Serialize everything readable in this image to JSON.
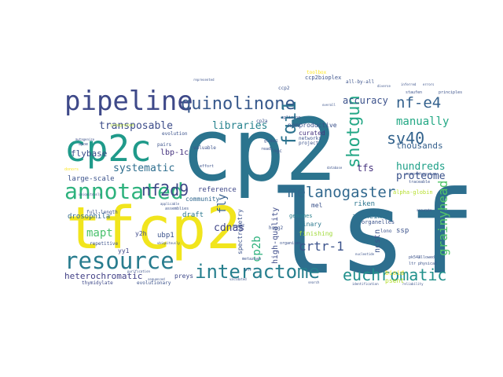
{
  "word_cloud": {
    "words": [
      {
        "text": "lsf",
        "color": "#2d6f8e"
      },
      {
        "text": "cp2",
        "color": "#2b748e"
      },
      {
        "text": "tfcp2",
        "color": "#f1e51d"
      },
      {
        "text": "pipeline",
        "color": "#3e4989"
      },
      {
        "text": "cp2c",
        "color": "#1f9a8a"
      },
      {
        "text": "annotated",
        "color": "#2db27d"
      },
      {
        "text": "resource",
        "color": "#287c8e"
      },
      {
        "text": "interactome",
        "color": "#277f8e"
      },
      {
        "text": "euchromatic",
        "color": "#21918c"
      },
      {
        "text": "quinolinone",
        "color": "#38598c"
      },
      {
        "text": "fqi1",
        "color": "#2c738e"
      },
      {
        "text": "shotgun",
        "color": "#22a785"
      },
      {
        "text": "melanogaster",
        "color": "#31688e"
      },
      {
        "text": "nf2d9",
        "color": "#3f4788"
      },
      {
        "text": "sv40",
        "color": "#33638d"
      },
      {
        "text": "nf-e4",
        "color": "#34618d"
      },
      {
        "text": "cp2b",
        "color": "#2db27d"
      },
      {
        "text": "grainyhead",
        "color": "#52c569"
      },
      {
        "text": "crtr-1",
        "color": "#3b528b"
      },
      {
        "text": "mapt",
        "color": "#4ac16d"
      },
      {
        "text": "cdnas",
        "color": "#404688"
      },
      {
        "text": "fly",
        "color": "#355f8d"
      },
      {
        "text": "transposable",
        "color": "#3d4d8a"
      },
      {
        "text": "libraries",
        "color": "#26828e"
      },
      {
        "text": "systematic",
        "color": "#2e6e8e"
      },
      {
        "text": "accuracy",
        "color": "#3b518b"
      },
      {
        "text": "manually",
        "color": "#22a884"
      },
      {
        "text": "hundreds",
        "color": "#1fa088"
      },
      {
        "text": "proteome",
        "color": "#3b528b"
      },
      {
        "text": "thousands",
        "color": "#35608d"
      },
      {
        "text": "tfs",
        "color": "#46327e"
      },
      {
        "text": "flybase",
        "color": "#3c4f8a"
      },
      {
        "text": "heterochromatic",
        "color": "#424086"
      },
      {
        "text": "draft",
        "color": "#2a778e"
      },
      {
        "text": "lbp-1c",
        "color": "#46337f"
      },
      {
        "text": "drosophila",
        "color": "#31688e"
      },
      {
        "text": "large-scale",
        "color": "#3b528b"
      },
      {
        "text": "reference",
        "color": "#3f4889"
      },
      {
        "text": "alzheimer",
        "color": "#2c728e"
      },
      {
        "text": "high-quality",
        "color": "#3e4c8a"
      },
      {
        "text": "nonproductive",
        "color": "#3b528b"
      },
      {
        "text": "curated",
        "color": "#46327e"
      },
      {
        "text": "riken",
        "color": "#2b758e"
      },
      {
        "text": "finishing",
        "color": "#a0da39"
      },
      {
        "text": "binary",
        "color": "#2a778e"
      },
      {
        "text": "genomes",
        "color": "#277f8e"
      },
      {
        "text": "mel",
        "color": "#3b528b"
      },
      {
        "text": "community",
        "color": "#31688e"
      },
      {
        "text": "ubp1",
        "color": "#3b528b"
      },
      {
        "text": "y2h",
        "color": "#3e4989"
      },
      {
        "text": "yy1",
        "color": "#3f4788"
      },
      {
        "text": "preys",
        "color": "#3e4989"
      },
      {
        "text": "full-length",
        "color": "#3b528b"
      },
      {
        "text": "repetitive",
        "color": "#3b528b"
      },
      {
        "text": "evolutionary",
        "color": "#3b528b"
      },
      {
        "text": "thymidylate",
        "color": "#3e4989"
      },
      {
        "text": "spectrometry",
        "color": "#3b528b"
      },
      {
        "text": "alpha-globin",
        "color": "#b5de2b"
      },
      {
        "text": "ssp",
        "color": "#3b528b"
      },
      {
        "text": "psent",
        "color": "#b5de2b"
      },
      {
        "text": "bioid",
        "color": "#fde725"
      },
      {
        "text": "ncstn",
        "color": "#3b528b"
      },
      {
        "text": "organelles",
        "color": "#3b528b"
      },
      {
        "text": "lono",
        "color": "#3b528b"
      },
      {
        "text": "ccp2",
        "color": "#3b528b"
      },
      {
        "text": "ccp2bioplex",
        "color": "#3b528b"
      },
      {
        "text": "toolbox",
        "color": "#fde725"
      },
      {
        "text": "all-by-all",
        "color": "#3b528b"
      },
      {
        "text": "project",
        "color": "#3b528b"
      },
      {
        "text": "networks",
        "color": "#3b528b"
      },
      {
        "text": "cp2a",
        "color": "#3b528b"
      },
      {
        "text": "hspg2",
        "color": "#3b528b"
      },
      {
        "text": "organisms",
        "color": "#3b528b"
      },
      {
        "text": "metazoan",
        "color": "#3b528b"
      },
      {
        "text": "ngc",
        "color": "#3b528b"
      },
      {
        "text": "reads",
        "color": "#3b528b"
      },
      {
        "text": "global",
        "color": "#3b528b"
      },
      {
        "text": "pairs",
        "color": "#3b528b"
      },
      {
        "text": "effort",
        "color": "#3b528b"
      },
      {
        "text": "valuable",
        "color": "#3b528b"
      },
      {
        "text": "evolution",
        "color": "#3b528b"
      },
      {
        "text": "integrated",
        "color": "#b5de2b"
      },
      {
        "text": "apoe",
        "color": "#3b528b"
      },
      {
        "text": "psen2",
        "color": "#3b528b"
      },
      {
        "text": "ubiquitously",
        "color": "#3b528b"
      },
      {
        "text": "ltr",
        "color": "#3b528b"
      },
      {
        "text": "allowed",
        "color": "#3b528b"
      },
      {
        "text": "physical",
        "color": "#3b528b"
      },
      {
        "text": "pk542",
        "color": "#3b528b"
      },
      {
        "text": "accurate",
        "color": "#3b528b"
      },
      {
        "text": "staufen",
        "color": "#3b528b"
      },
      {
        "text": "inferred",
        "color": "#3b528b"
      },
      {
        "text": "comprehensive",
        "color": "#3b528b"
      },
      {
        "text": "traceable",
        "color": "#3b528b"
      },
      {
        "text": "principles",
        "color": "#3b528b"
      },
      {
        "text": "represented",
        "color": "#3b528b"
      },
      {
        "text": "splicing",
        "color": "#3b528b"
      },
      {
        "text": "identification",
        "color": "#3b528b"
      },
      {
        "text": "reliability",
        "color": "#3b528b"
      },
      {
        "text": "assemblies",
        "color": "#3b528b"
      },
      {
        "text": "applicable",
        "color": "#3b528b"
      },
      {
        "text": "mutagenize",
        "color": "#3b528b"
      },
      {
        "text": "sequenced",
        "color": "#3b528b"
      },
      {
        "text": "donors",
        "color": "#fde725"
      },
      {
        "text": "overall",
        "color": "#3b528b"
      },
      {
        "text": "diverse",
        "color": "#3b528b"
      },
      {
        "text": "errors",
        "color": "#3b528b"
      },
      {
        "text": "database",
        "color": "#3b528b"
      },
      {
        "text": "search",
        "color": "#3b528b"
      },
      {
        "text": "validated",
        "color": "#3b528b"
      },
      {
        "text": "nucleotide",
        "color": "#3b528b"
      },
      {
        "text": "purification",
        "color": "#3b528b"
      },
      {
        "text": "ubiquitously",
        "color": "#3b528b"
      },
      {
        "text": "fill",
        "color": "#3b528b"
      }
    ]
  }
}
